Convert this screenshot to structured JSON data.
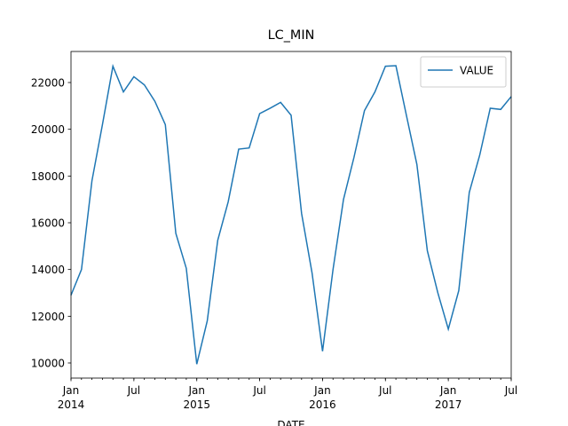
{
  "chart_data": {
    "type": "line",
    "title": "LC_MIN",
    "xlabel": "DATE",
    "x": [
      "2014-01",
      "2014-02",
      "2014-03",
      "2014-04",
      "2014-05",
      "2014-06",
      "2014-07",
      "2014-08",
      "2014-09",
      "2014-10",
      "2014-11",
      "2014-12",
      "2015-01",
      "2015-02",
      "2015-03",
      "2015-04",
      "2015-05",
      "2015-06",
      "2015-07",
      "2015-08",
      "2015-09",
      "2015-10",
      "2015-11",
      "2015-12",
      "2016-01",
      "2016-02",
      "2016-03",
      "2016-04",
      "2016-05",
      "2016-06",
      "2016-07",
      "2016-08",
      "2016-09",
      "2016-10",
      "2016-11",
      "2016-12",
      "2017-01",
      "2017-02",
      "2017-03",
      "2017-04",
      "2017-05",
      "2017-06",
      "2017-07"
    ],
    "series": [
      {
        "name": "VALUE",
        "color": "#1f77b4",
        "values": [
          12900,
          14000,
          17800,
          20200,
          22700,
          21600,
          22250,
          21900,
          21200,
          20200,
          15550,
          14050,
          9950,
          11800,
          15250,
          16900,
          19150,
          19200,
          20670,
          20900,
          21150,
          20600,
          16400,
          13850,
          10500,
          14000,
          17000,
          18800,
          20800,
          21600,
          22700,
          22720,
          20600,
          18500,
          14800,
          13000,
          11450,
          13100,
          17300,
          18900,
          20900,
          20850,
          21400
        ]
      }
    ],
    "xlim": [
      "2014-01",
      "2017-07"
    ],
    "xticks": [
      {
        "value": "2014-01",
        "label": "Jan\n2014"
      },
      {
        "value": "2014-07",
        "label": "Jul"
      },
      {
        "value": "2015-01",
        "label": "Jan\n2015"
      },
      {
        "value": "2015-07",
        "label": "Jul"
      },
      {
        "value": "2016-01",
        "label": "Jan\n2016"
      },
      {
        "value": "2016-07",
        "label": "Jul"
      },
      {
        "value": "2017-01",
        "label": "Jan\n2017"
      },
      {
        "value": "2017-07",
        "label": "Jul"
      }
    ],
    "ylim": [
      9354,
      23329
    ],
    "yticks": [
      10000,
      12000,
      14000,
      16000,
      18000,
      20000,
      22000
    ],
    "legend": "upper right"
  }
}
